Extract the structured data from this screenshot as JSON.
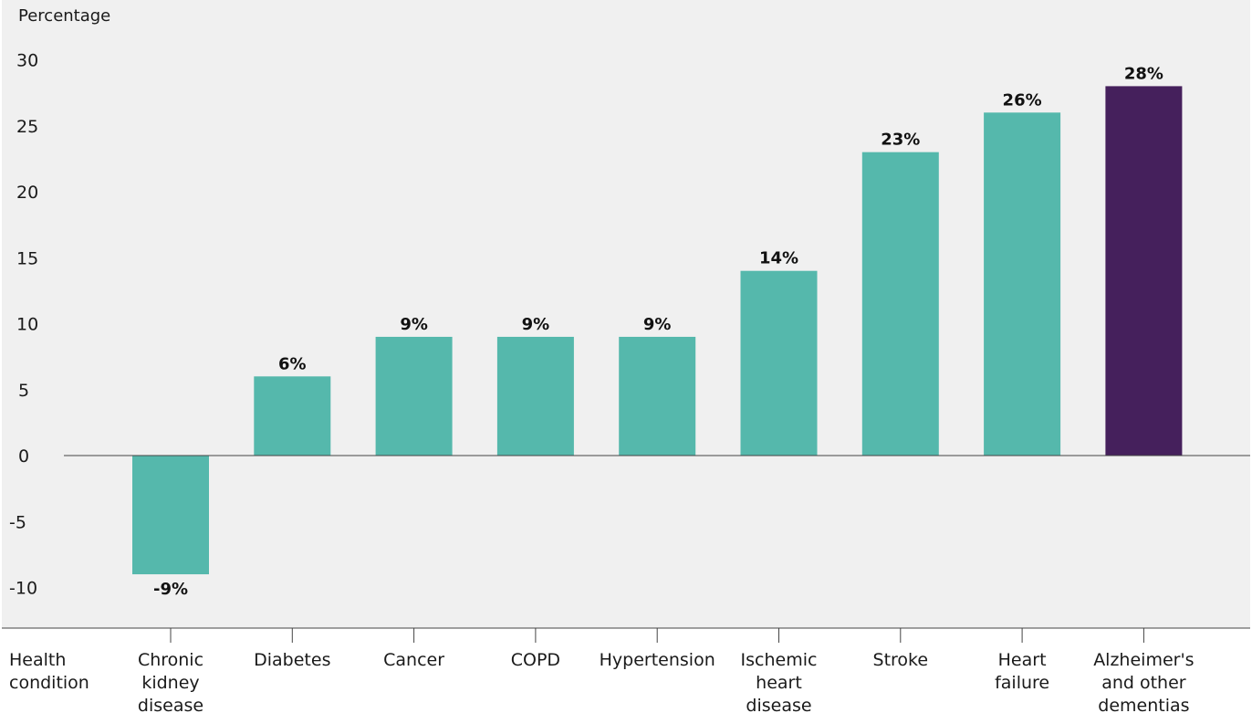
{
  "colors": {
    "plot_background": "#f0f0f0",
    "bar_default": "#55b8ac",
    "bar_highlight": "#45205c",
    "axis": "#444444"
  },
  "chart_data": {
    "type": "bar",
    "title": "",
    "ylabel": "Percentage",
    "xlabel": "Health condition",
    "ylim": [
      -13,
      33
    ],
    "yticks": [
      -10,
      -5,
      0,
      5,
      10,
      15,
      20,
      25,
      30
    ],
    "grid": false,
    "legend": "none",
    "categories": [
      "Chronic kidney disease",
      "Diabetes",
      "Cancer",
      "COPD",
      "Hypertension",
      "Ischemic heart disease",
      "Stroke",
      "Heart failure",
      "Alzheimer's and other dementias"
    ],
    "values": [
      -9,
      6,
      9,
      9,
      9,
      14,
      23,
      26,
      28
    ],
    "value_labels": [
      "-9%",
      "6%",
      "9%",
      "9%",
      "9%",
      "14%",
      "23%",
      "26%",
      "28%"
    ],
    "highlighted_category": "Alzheimer's and other dementias"
  }
}
